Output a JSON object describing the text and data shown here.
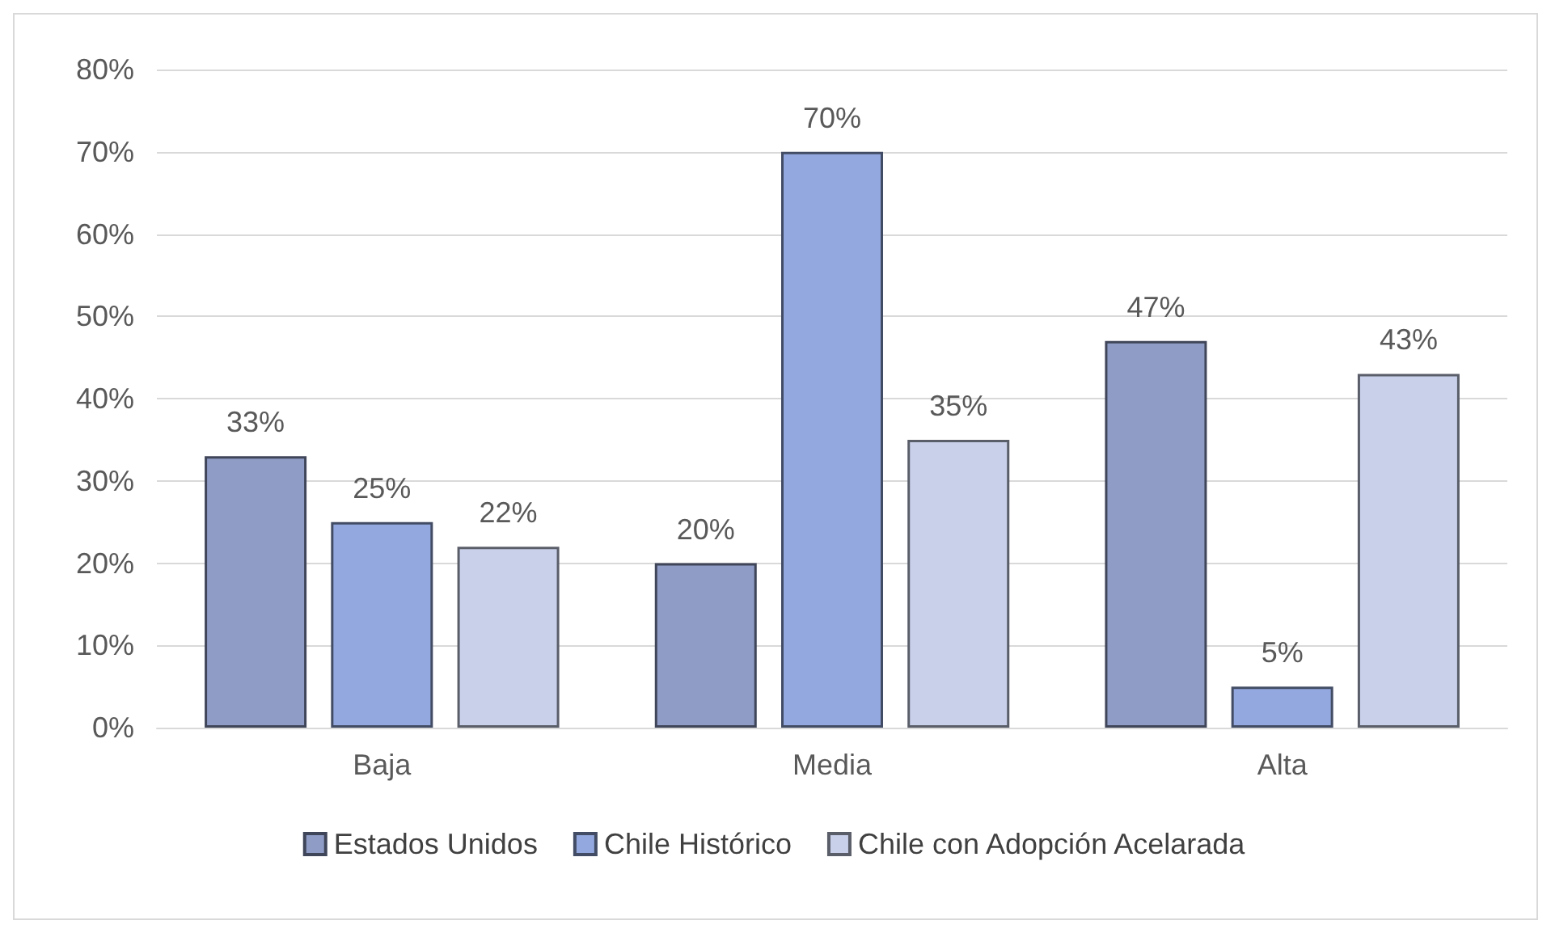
{
  "chart_data": {
    "type": "bar",
    "categories": [
      "Baja",
      "Media",
      "Alta"
    ],
    "series": [
      {
        "name": "Estados Unidos",
        "color": "#8e9cc6",
        "values": [
          33,
          20,
          47
        ],
        "value_labels": [
          "33%",
          "20%",
          "47%"
        ]
      },
      {
        "name": "Chile Histórico",
        "color": "#93a8de",
        "values": [
          25,
          70,
          5
        ],
        "value_labels": [
          "25%",
          "70%",
          "5%"
        ]
      },
      {
        "name": "Chile con Adopción Acelarada",
        "color": "#c9d0ea",
        "values": [
          22,
          35,
          43
        ],
        "value_labels": [
          "22%",
          "35%",
          "43%"
        ]
      }
    ],
    "ylim": [
      0,
      80
    ],
    "yticks": [
      {
        "value": 0,
        "label": "0%"
      },
      {
        "value": 10,
        "label": "10%"
      },
      {
        "value": 20,
        "label": "20%"
      },
      {
        "value": 30,
        "label": "30%"
      },
      {
        "value": 40,
        "label": "40%"
      },
      {
        "value": 50,
        "label": "50%"
      },
      {
        "value": 60,
        "label": "60%"
      },
      {
        "value": 70,
        "label": "70%"
      },
      {
        "value": 80,
        "label": "80%"
      }
    ],
    "grid": "y",
    "legend": "bottom"
  }
}
